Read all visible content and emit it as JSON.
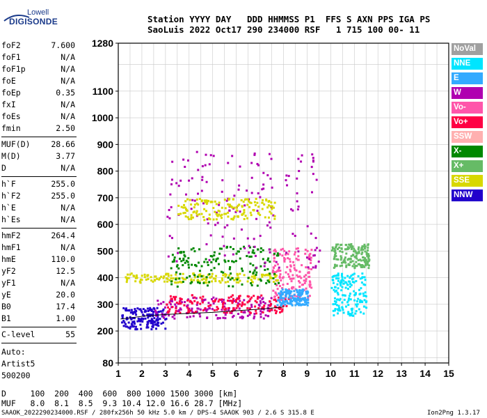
{
  "logo": {
    "top": "Lowell",
    "bottom": "DIGISONDE"
  },
  "header": {
    "line1": "Station YYYY DAY   DDD HHMMSS P1  FFS S AXN PPS IGA PS",
    "line2": "SaoLuis 2022 Oct17 290 234000 RSF   1 715 100 00- 11"
  },
  "parameters_1": [
    {
      "label": "foF2",
      "value": "7.600"
    },
    {
      "label": "foF1",
      "value": "N/A"
    },
    {
      "label": "foF1p",
      "value": "N/A"
    },
    {
      "label": "foE",
      "value": "N/A"
    },
    {
      "label": "foEp",
      "value": "0.35"
    },
    {
      "label": "fxI",
      "value": "N/A"
    },
    {
      "label": "foEs",
      "value": "N/A"
    },
    {
      "label": "fmin",
      "value": "2.50"
    }
  ],
  "parameters_2": [
    {
      "label": "MUF(D)",
      "value": "28.66"
    },
    {
      "label": "M(D)",
      "value": "3.77"
    },
    {
      "label": "D",
      "value": "N/A"
    }
  ],
  "parameters_3": [
    {
      "label": "h`F",
      "value": "255.0"
    },
    {
      "label": "h`F2",
      "value": "255.0"
    },
    {
      "label": "h`E",
      "value": "N/A"
    },
    {
      "label": "h`Es",
      "value": "N/A"
    }
  ],
  "parameters_4": [
    {
      "label": "hmF2",
      "value": "264.4"
    },
    {
      "label": "hmF1",
      "value": "N/A"
    },
    {
      "label": "hmE",
      "value": "110.0"
    },
    {
      "label": "yF2",
      "value": "12.5"
    },
    {
      "label": "yF1",
      "value": "N/A"
    },
    {
      "label": "yE",
      "value": "20.0"
    },
    {
      "label": "B0",
      "value": "17.4"
    },
    {
      "label": "B1",
      "value": "1.00"
    }
  ],
  "parameters_5": [
    {
      "label": "C-level",
      "value": "55"
    }
  ],
  "autoscale": [
    "Auto:",
    "Artist5",
    "500200"
  ],
  "footer": {
    "line1": "D     100  200  400  600  800 1000 1500 3000 [km]",
    "line2": "MUF   8.0  8.1  8.5  9.3 10.4 12.0 16.6 28.7 [MHz]",
    "line3": "SAAOK_2022290234000.RSF / 280fx256h 50 kHz 5.0 km / DPS-4 SAAOK 903 / 2.6 S 315.8 E",
    "version": "Ion2Png 1.3.17"
  },
  "legend": [
    {
      "label": "NoVal",
      "color": "#a0a0a0"
    },
    {
      "label": "NNE",
      "color": "#00e5ff"
    },
    {
      "label": "E",
      "color": "#33aaff"
    },
    {
      "label": "W",
      "color": "#b000b0"
    },
    {
      "label": "Vo-",
      "color": "#ff55aa"
    },
    {
      "label": "Vo+",
      "color": "#ff0044"
    },
    {
      "label": "SSW",
      "color": "#ffb0b0"
    },
    {
      "label": "X-",
      "color": "#008800"
    },
    {
      "label": "X+",
      "color": "#66bb66"
    },
    {
      "label": "SSE",
      "color": "#d8d800"
    },
    {
      "label": "NNW",
      "color": "#2200cc"
    }
  ],
  "chart_data": {
    "type": "scatter",
    "xlim": [
      1,
      15
    ],
    "ylim": [
      80,
      1280
    ],
    "x_ticks": [
      1,
      2,
      3,
      4,
      5,
      6,
      7,
      8,
      9,
      10,
      11,
      12,
      13,
      14,
      15
    ],
    "y_ticks": [
      80,
      200,
      300,
      400,
      500,
      600,
      700,
      800,
      900,
      1000,
      1100,
      1280
    ],
    "grid": true,
    "legend_position": "right",
    "clusters": [
      {
        "direction": "NNW",
        "x": [
          1.1,
          3.0
        ],
        "y": [
          210,
          290
        ]
      },
      {
        "direction": "W",
        "x": [
          2.5,
          7.5
        ],
        "y": [
          250,
          330
        ]
      },
      {
        "direction": "Vo+",
        "x": [
          3.0,
          8.2
        ],
        "y": [
          270,
          340
        ]
      },
      {
        "direction": "Vo-",
        "x": [
          7.5,
          9.2
        ],
        "y": [
          320,
          520
        ]
      },
      {
        "direction": "E",
        "x": [
          7.7,
          9.0
        ],
        "y": [
          300,
          360
        ]
      },
      {
        "direction": "SSE",
        "x": [
          1.2,
          7.8
        ],
        "y": [
          385,
          420
        ]
      },
      {
        "direction": "X-",
        "x": [
          3.2,
          7.8
        ],
        "y": [
          370,
          520
        ]
      },
      {
        "direction": "X+",
        "x": [
          10.0,
          11.6
        ],
        "y": [
          440,
          530
        ]
      },
      {
        "direction": "W",
        "x": [
          3.0,
          9.5
        ],
        "y": [
          440,
          880
        ]
      },
      {
        "direction": "NNE",
        "x": [
          10.0,
          11.5
        ],
        "y": [
          260,
          420
        ]
      },
      {
        "direction": "SSE",
        "x": [
          3.5,
          7.6
        ],
        "y": [
          620,
          700
        ]
      }
    ],
    "trace": {
      "x": [
        1.1,
        2.0,
        3.0,
        5.0,
        7.0,
        8.0
      ],
      "y": [
        245,
        255,
        262,
        270,
        282,
        290
      ]
    }
  }
}
